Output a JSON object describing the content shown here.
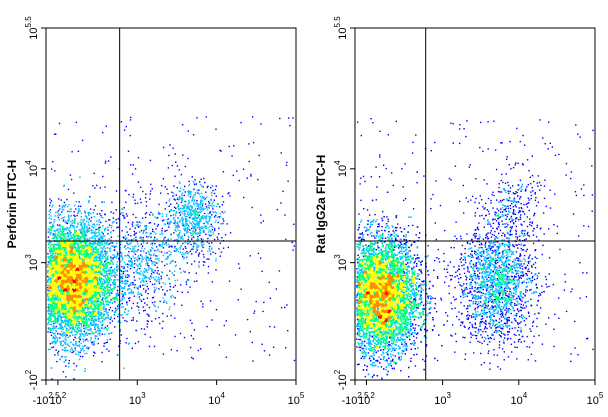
{
  "chart_data": [
    {
      "type": "scatter",
      "title": "",
      "xlabel": "",
      "ylabel": "Perforin FITC-H",
      "x_scale": "biexponential",
      "y_scale": "biexponential",
      "x_ticks": [
        {
          "label": "-10",
          "sup": "2.5",
          "value": -316
        },
        {
          "label": "10",
          "sup": "2",
          "value": 100
        },
        {
          "label": "10",
          "sup": "3",
          "value": 1000
        },
        {
          "label": "10",
          "sup": "4",
          "value": 10000
        },
        {
          "label": "10",
          "sup": "5",
          "value": 100000
        }
      ],
      "y_ticks": [
        {
          "label": "-10",
          "sup": "2",
          "value": -100
        },
        {
          "label": "10",
          "sup": "3",
          "value": 1000
        },
        {
          "label": "10",
          "sup": "4",
          "value": 10000
        },
        {
          "label": "10",
          "sup": "5.5",
          "value": 316228
        }
      ],
      "gate": {
        "x": 600,
        "y": 1700
      },
      "populations": [
        {
          "x": 150,
          "y": 650,
          "spread": "high",
          "density": "very high"
        },
        {
          "x": 5000,
          "y": 3000,
          "spread": "medium",
          "density": "low"
        },
        {
          "x": 1200,
          "y": 1000,
          "spread": "high",
          "density": "low"
        }
      ],
      "colors": [
        "#0000ff",
        "#00bfff",
        "#00ff7f",
        "#ffff00",
        "#ff8c00",
        "#ff0000"
      ]
    },
    {
      "type": "scatter",
      "title": "",
      "xlabel": "",
      "ylabel": "Rat IgG2a FITC-H",
      "x_scale": "biexponential",
      "y_scale": "biexponential",
      "x_ticks": [
        {
          "label": "-10",
          "sup": "2.5",
          "value": -316
        },
        {
          "label": "10",
          "sup": "2",
          "value": 100
        },
        {
          "label": "10",
          "sup": "3",
          "value": 1000
        },
        {
          "label": "10",
          "sup": "4",
          "value": 10000
        },
        {
          "label": "10",
          "sup": "5",
          "value": 100000
        }
      ],
      "y_ticks": [
        {
          "label": "-10",
          "sup": "2",
          "value": -100
        },
        {
          "label": "10",
          "sup": "3",
          "value": 1000
        },
        {
          "label": "10",
          "sup": "4",
          "value": 10000
        },
        {
          "label": "10",
          "sup": "5.5",
          "value": 316228
        }
      ],
      "gate": {
        "x": 600,
        "y": 1700
      },
      "populations": [
        {
          "x": 150,
          "y": 450,
          "spread": "high",
          "density": "very high"
        },
        {
          "x": 5000,
          "y": 600,
          "spread": "high",
          "density": "medium"
        },
        {
          "x": 8000,
          "y": 4000,
          "spread": "medium",
          "density": "very low"
        }
      ],
      "colors": [
        "#0000ff",
        "#00bfff",
        "#00ff7f",
        "#ffff00",
        "#ff8c00",
        "#ff0000"
      ]
    }
  ]
}
